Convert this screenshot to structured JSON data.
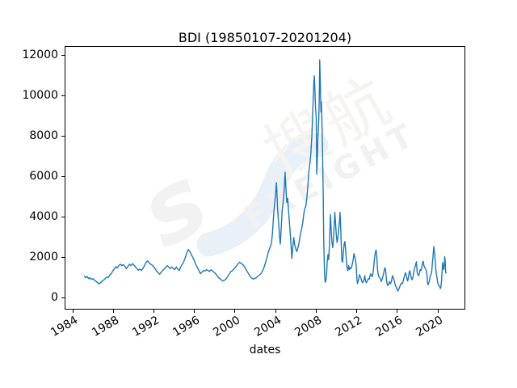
{
  "figure": {
    "title": "BDI (19850107-20201204)",
    "xlabel": "dates",
    "background_color": "#ffffff",
    "spine_color": "#000000"
  },
  "watermark": {
    "logo_s": "s",
    "cjk": "搜航",
    "latin": "FREIGHT",
    "logo_color": "#f2f2f2",
    "swoosh_color": "#e9f0f8",
    "cjk_color": "#f6f4f1",
    "latin_color": "#f1f1f1"
  },
  "chart_data": {
    "type": "line",
    "title": "BDI (19850107-20201204)",
    "xlabel": "dates",
    "ylabel": "",
    "grid": false,
    "legend": "none",
    "line_color": "#1f77b4",
    "xlim": [
      1983.2,
      2022.7
    ],
    "ylim": [
      -600,
      12440
    ],
    "xticks": [
      1984,
      1988,
      1992,
      1996,
      2000,
      2004,
      2008,
      2012,
      2016,
      2020
    ],
    "yticks": [
      0,
      2000,
      4000,
      6000,
      8000,
      10000,
      12000
    ],
    "series": [
      {
        "name": "BDI",
        "x": [
          1985.02,
          1985.15,
          1985.3,
          1985.45,
          1985.6,
          1985.75,
          1985.9,
          1986.05,
          1986.2,
          1986.35,
          1986.5,
          1986.65,
          1986.8,
          1986.95,
          1987.1,
          1987.25,
          1987.4,
          1987.55,
          1987.7,
          1987.85,
          1988.0,
          1988.15,
          1988.3,
          1988.45,
          1988.6,
          1988.75,
          1988.9,
          1989.05,
          1989.2,
          1989.35,
          1989.5,
          1989.65,
          1989.8,
          1989.95,
          1990.1,
          1990.25,
          1990.4,
          1990.55,
          1990.7,
          1990.85,
          1991.0,
          1991.15,
          1991.3,
          1991.45,
          1991.6,
          1991.75,
          1991.9,
          1992.05,
          1992.2,
          1992.35,
          1992.5,
          1992.65,
          1992.8,
          1992.95,
          1993.1,
          1993.25,
          1993.4,
          1993.55,
          1993.7,
          1993.85,
          1994.0,
          1994.15,
          1994.3,
          1994.45,
          1994.6,
          1994.75,
          1994.9,
          1995.05,
          1995.2,
          1995.35,
          1995.5,
          1995.65,
          1995.8,
          1995.95,
          1996.1,
          1996.25,
          1996.4,
          1996.55,
          1996.7,
          1996.85,
          1997.0,
          1997.15,
          1997.3,
          1997.45,
          1997.6,
          1997.75,
          1997.9,
          1998.05,
          1998.2,
          1998.35,
          1998.5,
          1998.65,
          1998.8,
          1998.95,
          1999.1,
          1999.25,
          1999.4,
          1999.55,
          1999.7,
          1999.85,
          2000.0,
          2000.15,
          2000.3,
          2000.45,
          2000.6,
          2000.75,
          2000.9,
          2001.05,
          2001.2,
          2001.35,
          2001.5,
          2001.65,
          2001.8,
          2001.95,
          2002.1,
          2002.25,
          2002.4,
          2002.55,
          2002.7,
          2002.85,
          2003.0,
          2003.15,
          2003.3,
          2003.45,
          2003.6,
          2003.7,
          2003.8,
          2003.9,
          2004.0,
          2004.08,
          2004.13,
          2004.2,
          2004.3,
          2004.4,
          2004.47,
          2004.55,
          2004.65,
          2004.75,
          2004.85,
          2004.95,
          2005.05,
          2005.12,
          2005.2,
          2005.28,
          2005.35,
          2005.45,
          2005.55,
          2005.62,
          2005.7,
          2005.8,
          2005.9,
          2006.0,
          2006.1,
          2006.2,
          2006.3,
          2006.4,
          2006.5,
          2006.6,
          2006.7,
          2006.8,
          2006.9,
          2007.0,
          2007.1,
          2007.2,
          2007.3,
          2007.4,
          2007.5,
          2007.6,
          2007.7,
          2007.8,
          2007.85,
          2007.9,
          2007.97,
          2008.04,
          2008.09,
          2008.14,
          2008.2,
          2008.28,
          2008.33,
          2008.38,
          2008.44,
          2008.5,
          2008.55,
          2008.6,
          2008.66,
          2008.72,
          2008.78,
          2008.85,
          2008.92,
          2008.98,
          2009.05,
          2009.12,
          2009.2,
          2009.27,
          2009.33,
          2009.4,
          2009.45,
          2009.52,
          2009.6,
          2009.67,
          2009.75,
          2009.82,
          2009.88,
          2009.95,
          2010.02,
          2010.1,
          2010.18,
          2010.25,
          2010.33,
          2010.4,
          2010.45,
          2010.52,
          2010.58,
          2010.65,
          2010.72,
          2010.8,
          2010.88,
          2010.95,
          2011.02,
          2011.1,
          2011.18,
          2011.25,
          2011.33,
          2011.4,
          2011.48,
          2011.55,
          2011.62,
          2011.7,
          2011.78,
          2011.85,
          2011.92,
          2012.0,
          2012.07,
          2012.12,
          2012.18,
          2012.25,
          2012.33,
          2012.4,
          2012.48,
          2012.55,
          2012.62,
          2012.7,
          2012.78,
          2012.85,
          2012.92,
          2013.0,
          2013.08,
          2013.15,
          2013.22,
          2013.3,
          2013.38,
          2013.45,
          2013.52,
          2013.6,
          2013.68,
          2013.75,
          2013.82,
          2013.9,
          2013.97,
          2014.04,
          2014.1,
          2014.17,
          2014.25,
          2014.32,
          2014.4,
          2014.47,
          2014.55,
          2014.62,
          2014.7,
          2014.78,
          2014.85,
          2014.92,
          2015.0,
          2015.08,
          2015.15,
          2015.22,
          2015.3,
          2015.38,
          2015.45,
          2015.52,
          2015.6,
          2015.68,
          2015.75,
          2015.82,
          2015.9,
          2015.97,
          2016.04,
          2016.1,
          2016.14,
          2016.2,
          2016.28,
          2016.35,
          2016.42,
          2016.5,
          2016.58,
          2016.65,
          2016.72,
          2016.8,
          2016.88,
          2016.95,
          2017.02,
          2017.1,
          2017.18,
          2017.25,
          2017.32,
          2017.4,
          2017.48,
          2017.55,
          2017.62,
          2017.7,
          2017.78,
          2017.85,
          2017.92,
          2017.98,
          2018.05,
          2018.12,
          2018.2,
          2018.28,
          2018.35,
          2018.42,
          2018.5,
          2018.58,
          2018.65,
          2018.72,
          2018.8,
          2018.88,
          2018.95,
          2019.02,
          2019.08,
          2019.13,
          2019.2,
          2019.28,
          2019.35,
          2019.42,
          2019.5,
          2019.57,
          2019.63,
          2019.7,
          2019.77,
          2019.83,
          2019.9,
          2019.96,
          2020.02,
          2020.08,
          2020.15,
          2020.22,
          2020.28,
          2020.35,
          2020.4,
          2020.46,
          2020.52,
          2020.57,
          2020.62,
          2020.68,
          2020.73,
          2020.78,
          2020.83,
          2020.88,
          2020.93
        ],
        "y": [
          1040,
          950,
          1010,
          900,
          950,
          860,
          900,
          820,
          760,
          700,
          640,
          700,
          780,
          830,
          900,
          980,
          950,
          1080,
          1150,
          1280,
          1380,
          1500,
          1430,
          1550,
          1620,
          1550,
          1600,
          1520,
          1400,
          1500,
          1620,
          1550,
          1650,
          1580,
          1480,
          1400,
          1320,
          1380,
          1300,
          1420,
          1550,
          1700,
          1780,
          1700,
          1620,
          1580,
          1500,
          1400,
          1280,
          1200,
          1120,
          1220,
          1300,
          1380,
          1450,
          1550,
          1480,
          1400,
          1480,
          1420,
          1350,
          1480,
          1380,
          1300,
          1480,
          1620,
          1750,
          1950,
          2200,
          2350,
          2250,
          2100,
          1950,
          1800,
          1600,
          1450,
          1300,
          1150,
          1220,
          1300,
          1280,
          1350,
          1300,
          1260,
          1340,
          1280,
          1220,
          1150,
          1050,
          950,
          900,
          820,
          790,
          830,
          900,
          1000,
          1120,
          1250,
          1300,
          1380,
          1450,
          1550,
          1650,
          1720,
          1650,
          1600,
          1520,
          1380,
          1250,
          1120,
          1000,
          920,
          880,
          920,
          950,
          1020,
          1080,
          1150,
          1280,
          1450,
          1680,
          1950,
          2250,
          2450,
          2700,
          3200,
          4000,
          4600,
          5100,
          5680,
          5300,
          4400,
          3700,
          3000,
          2620,
          3300,
          4200,
          4700,
          5300,
          6200,
          5200,
          4700,
          4900,
          4300,
          3900,
          3200,
          2500,
          1900,
          2400,
          2950,
          2600,
          2400,
          2250,
          2400,
          2600,
          2900,
          3200,
          3400,
          3700,
          4100,
          4400,
          4500,
          4900,
          5500,
          6200,
          6600,
          7100,
          8000,
          9300,
          10700,
          11000,
          10300,
          9400,
          8900,
          6100,
          6800,
          7900,
          8700,
          9800,
          11793,
          10800,
          9200,
          9700,
          8800,
          7300,
          5200,
          2800,
          1300,
          720,
          780,
          1050,
          1700,
          2100,
          1850,
          2400,
          3400,
          4100,
          3300,
          2700,
          2450,
          2900,
          3600,
          4200,
          3700,
          3100,
          2700,
          2950,
          3300,
          3700,
          4200,
          3600,
          2500,
          1800,
          1720,
          2200,
          2600,
          2750,
          2300,
          1900,
          1450,
          1300,
          1550,
          1350,
          1450,
          1400,
          1500,
          1650,
          1850,
          2150,
          2000,
          1850,
          1600,
          900,
          650,
          750,
          900,
          1100,
          1000,
          900,
          780,
          700,
          750,
          850,
          1050,
          800,
          700,
          760,
          850,
          900,
          880,
          1080,
          1150,
          1050,
          1000,
          1200,
          1550,
          1950,
          2200,
          2330,
          2000,
          1450,
          1150,
          1000,
          950,
          900,
          750,
          850,
          950,
          1100,
          1300,
          1450,
          1300,
          850,
          600,
          560,
          620,
          750,
          650,
          700,
          820,
          1050,
          950,
          850,
          700,
          550,
          480,
          400,
          300,
          290,
          360,
          450,
          550,
          620,
          680,
          650,
          750,
          900,
          1050,
          1200,
          1100,
          950,
          780,
          950,
          1200,
          1300,
          1100,
          900,
          850,
          950,
          1200,
          1400,
          1500,
          1650,
          1740,
          1200,
          1100,
          1050,
          1200,
          1350,
          1300,
          1450,
          1700,
          1770,
          1550,
          1450,
          1400,
          1280,
          1100,
          680,
          600,
          700,
          850,
          1050,
          1100,
          1300,
          1750,
          2100,
          2500,
          2200,
          1800,
          1350,
          1100,
          950,
          700,
          600,
          550,
          500,
          410,
          480,
          750,
          1250,
          1700,
          1500,
          1350,
          1550,
          2000,
          1750,
          1200,
          1165
        ]
      }
    ]
  }
}
